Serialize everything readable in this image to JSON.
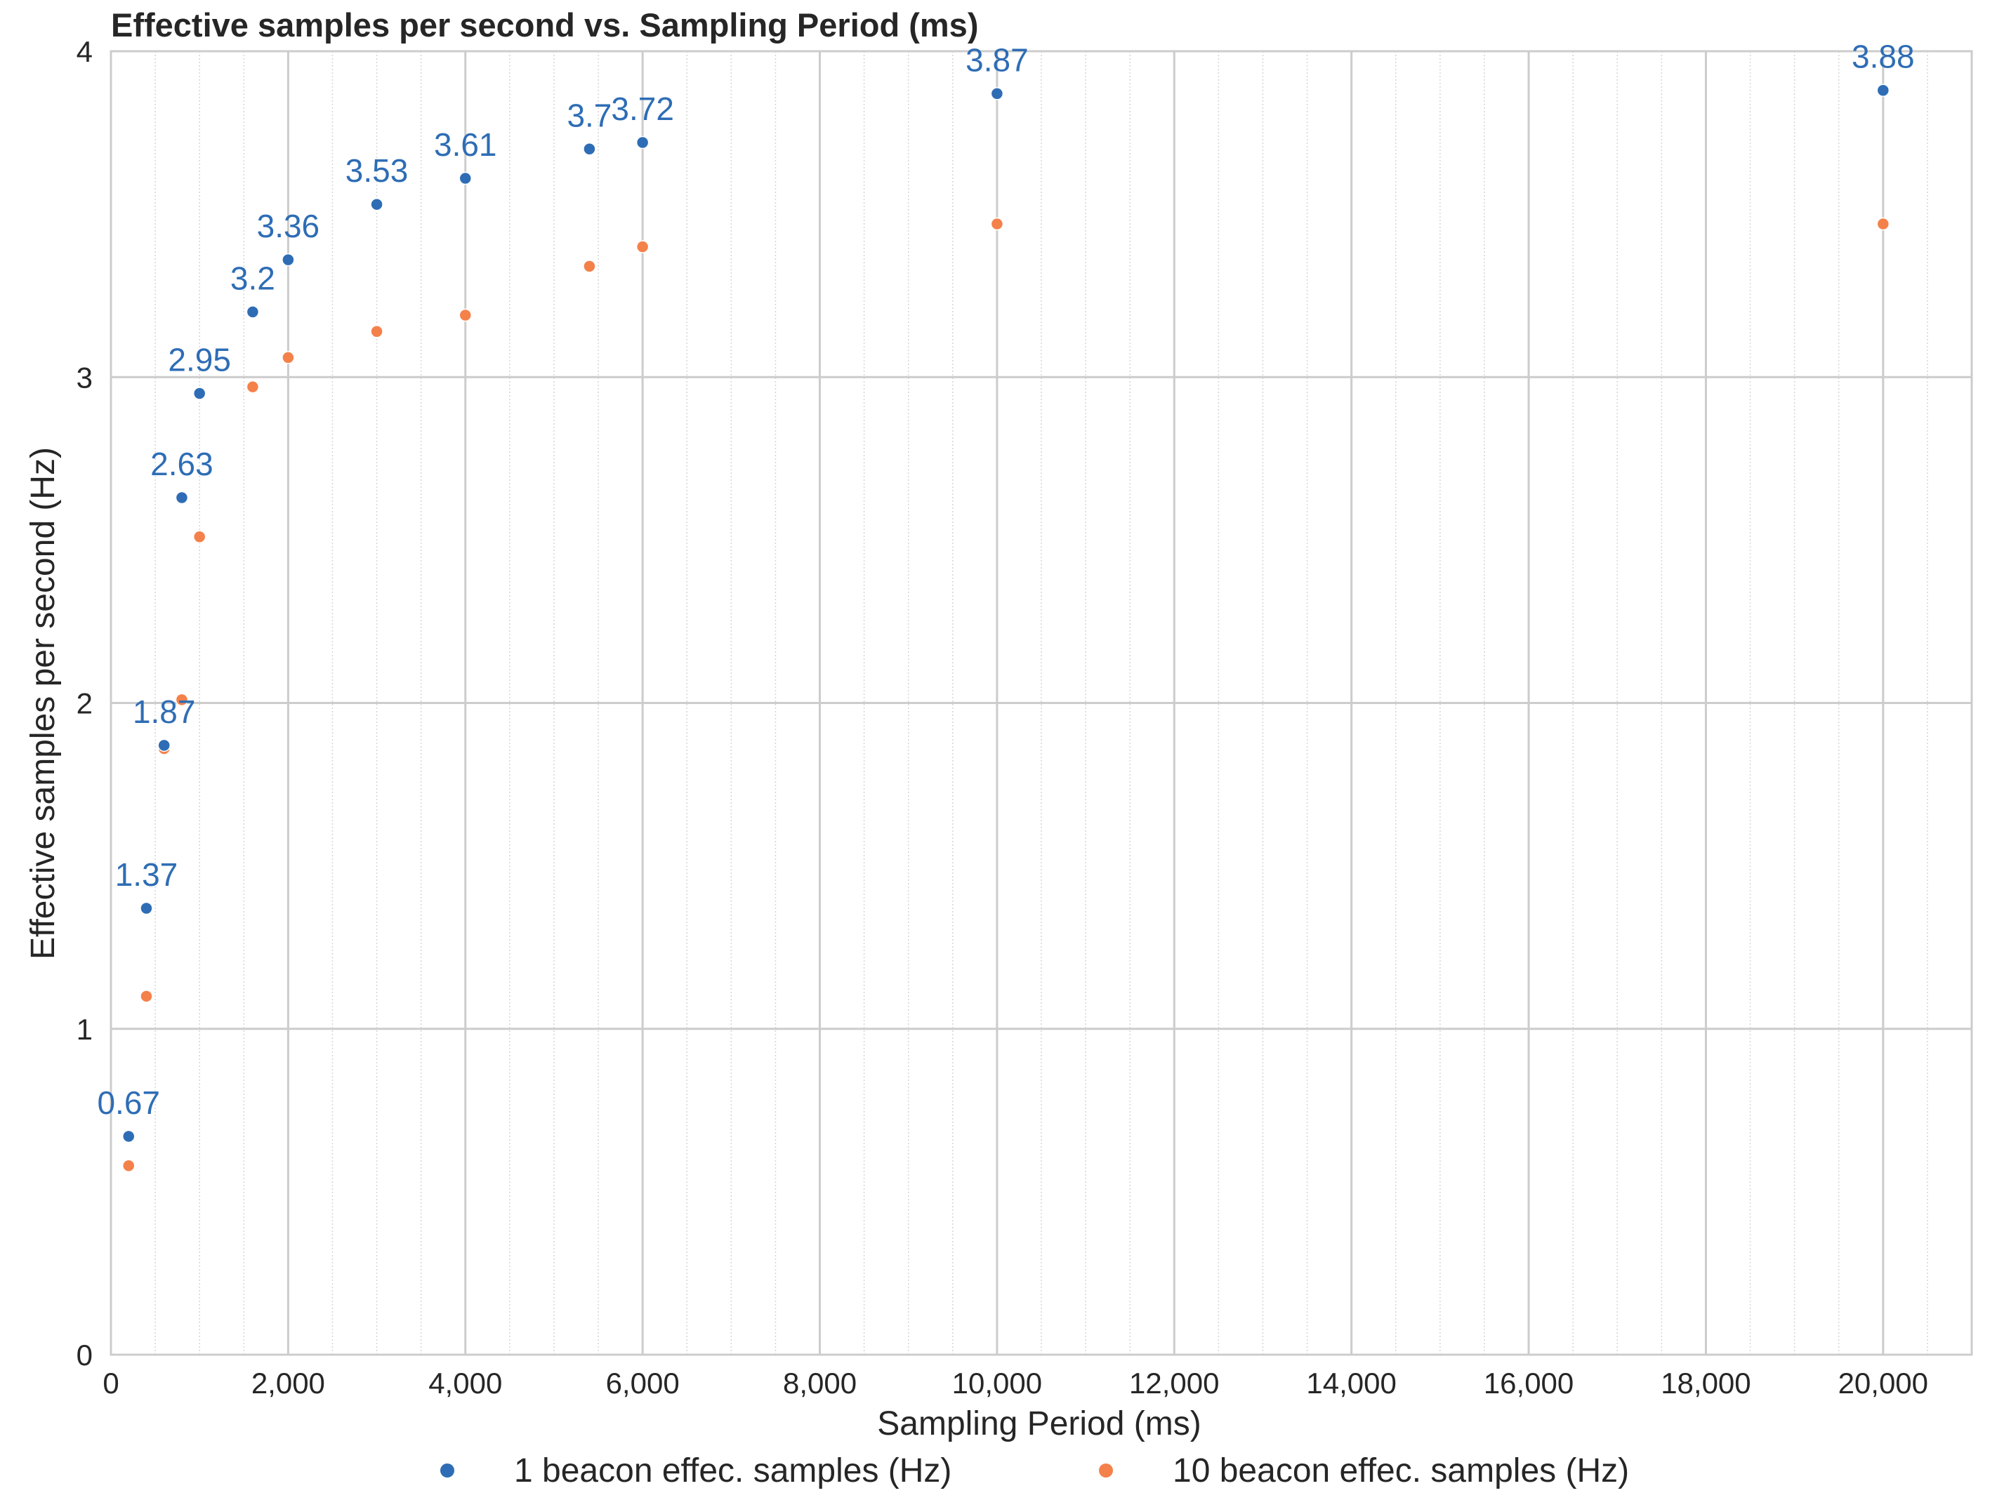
{
  "chart_data": {
    "type": "scatter",
    "title": "Effective samples per second vs. Sampling Period (ms)",
    "xlabel": "Sampling Period (ms)",
    "ylabel": "Effective samples per second (Hz)",
    "xlim": [
      0,
      21000
    ],
    "ylim": [
      0,
      4
    ],
    "x_major_ticks": [
      0,
      2000,
      4000,
      6000,
      8000,
      10000,
      12000,
      14000,
      16000,
      18000,
      20000
    ],
    "x_tick_labels": [
      "0",
      "2,000",
      "4,000",
      "6,000",
      "8,000",
      "10,000",
      "12,000",
      "14,000",
      "16,000",
      "18,000",
      "20,000"
    ],
    "x_minor_step": 500,
    "y_major_ticks": [
      0,
      1,
      2,
      3,
      4
    ],
    "y_tick_labels": [
      "0",
      "1",
      "2",
      "3",
      "4"
    ],
    "grid": true,
    "legend_position": "bottom-center",
    "series": [
      {
        "name": "1 beacon effec. samples (Hz)",
        "color": "#2e6db5",
        "show_labels": true,
        "points": [
          {
            "x": 200,
            "y": 0.67,
            "label": "0.67"
          },
          {
            "x": 400,
            "y": 1.37,
            "label": "1.37"
          },
          {
            "x": 600,
            "y": 1.87,
            "label": "1.87"
          },
          {
            "x": 800,
            "y": 2.63,
            "label": "2.63"
          },
          {
            "x": 1000,
            "y": 2.95,
            "label": "2.95"
          },
          {
            "x": 1600,
            "y": 3.2,
            "label": "3.2"
          },
          {
            "x": 2000,
            "y": 3.36,
            "label": "3.36"
          },
          {
            "x": 3000,
            "y": 3.53,
            "label": "3.53"
          },
          {
            "x": 4000,
            "y": 3.61,
            "label": "3.61"
          },
          {
            "x": 5400,
            "y": 3.7,
            "label": "3.7"
          },
          {
            "x": 6000,
            "y": 3.72,
            "label": "3.72"
          },
          {
            "x": 10000,
            "y": 3.87,
            "label": "3.87"
          },
          {
            "x": 20000,
            "y": 3.88,
            "label": "3.88"
          }
        ]
      },
      {
        "name": "10 beacon effec. samples (Hz)",
        "color": "#f4814a",
        "show_labels": false,
        "points": [
          {
            "x": 200,
            "y": 0.58
          },
          {
            "x": 400,
            "y": 1.1
          },
          {
            "x": 600,
            "y": 1.86
          },
          {
            "x": 800,
            "y": 2.01
          },
          {
            "x": 1000,
            "y": 2.51
          },
          {
            "x": 1600,
            "y": 2.97
          },
          {
            "x": 2000,
            "y": 3.06
          },
          {
            "x": 3000,
            "y": 3.14
          },
          {
            "x": 4000,
            "y": 3.19
          },
          {
            "x": 5400,
            "y": 3.34
          },
          {
            "x": 6000,
            "y": 3.4
          },
          {
            "x": 10000,
            "y": 3.47
          },
          {
            "x": 20000,
            "y": 3.47
          }
        ]
      }
    ]
  }
}
